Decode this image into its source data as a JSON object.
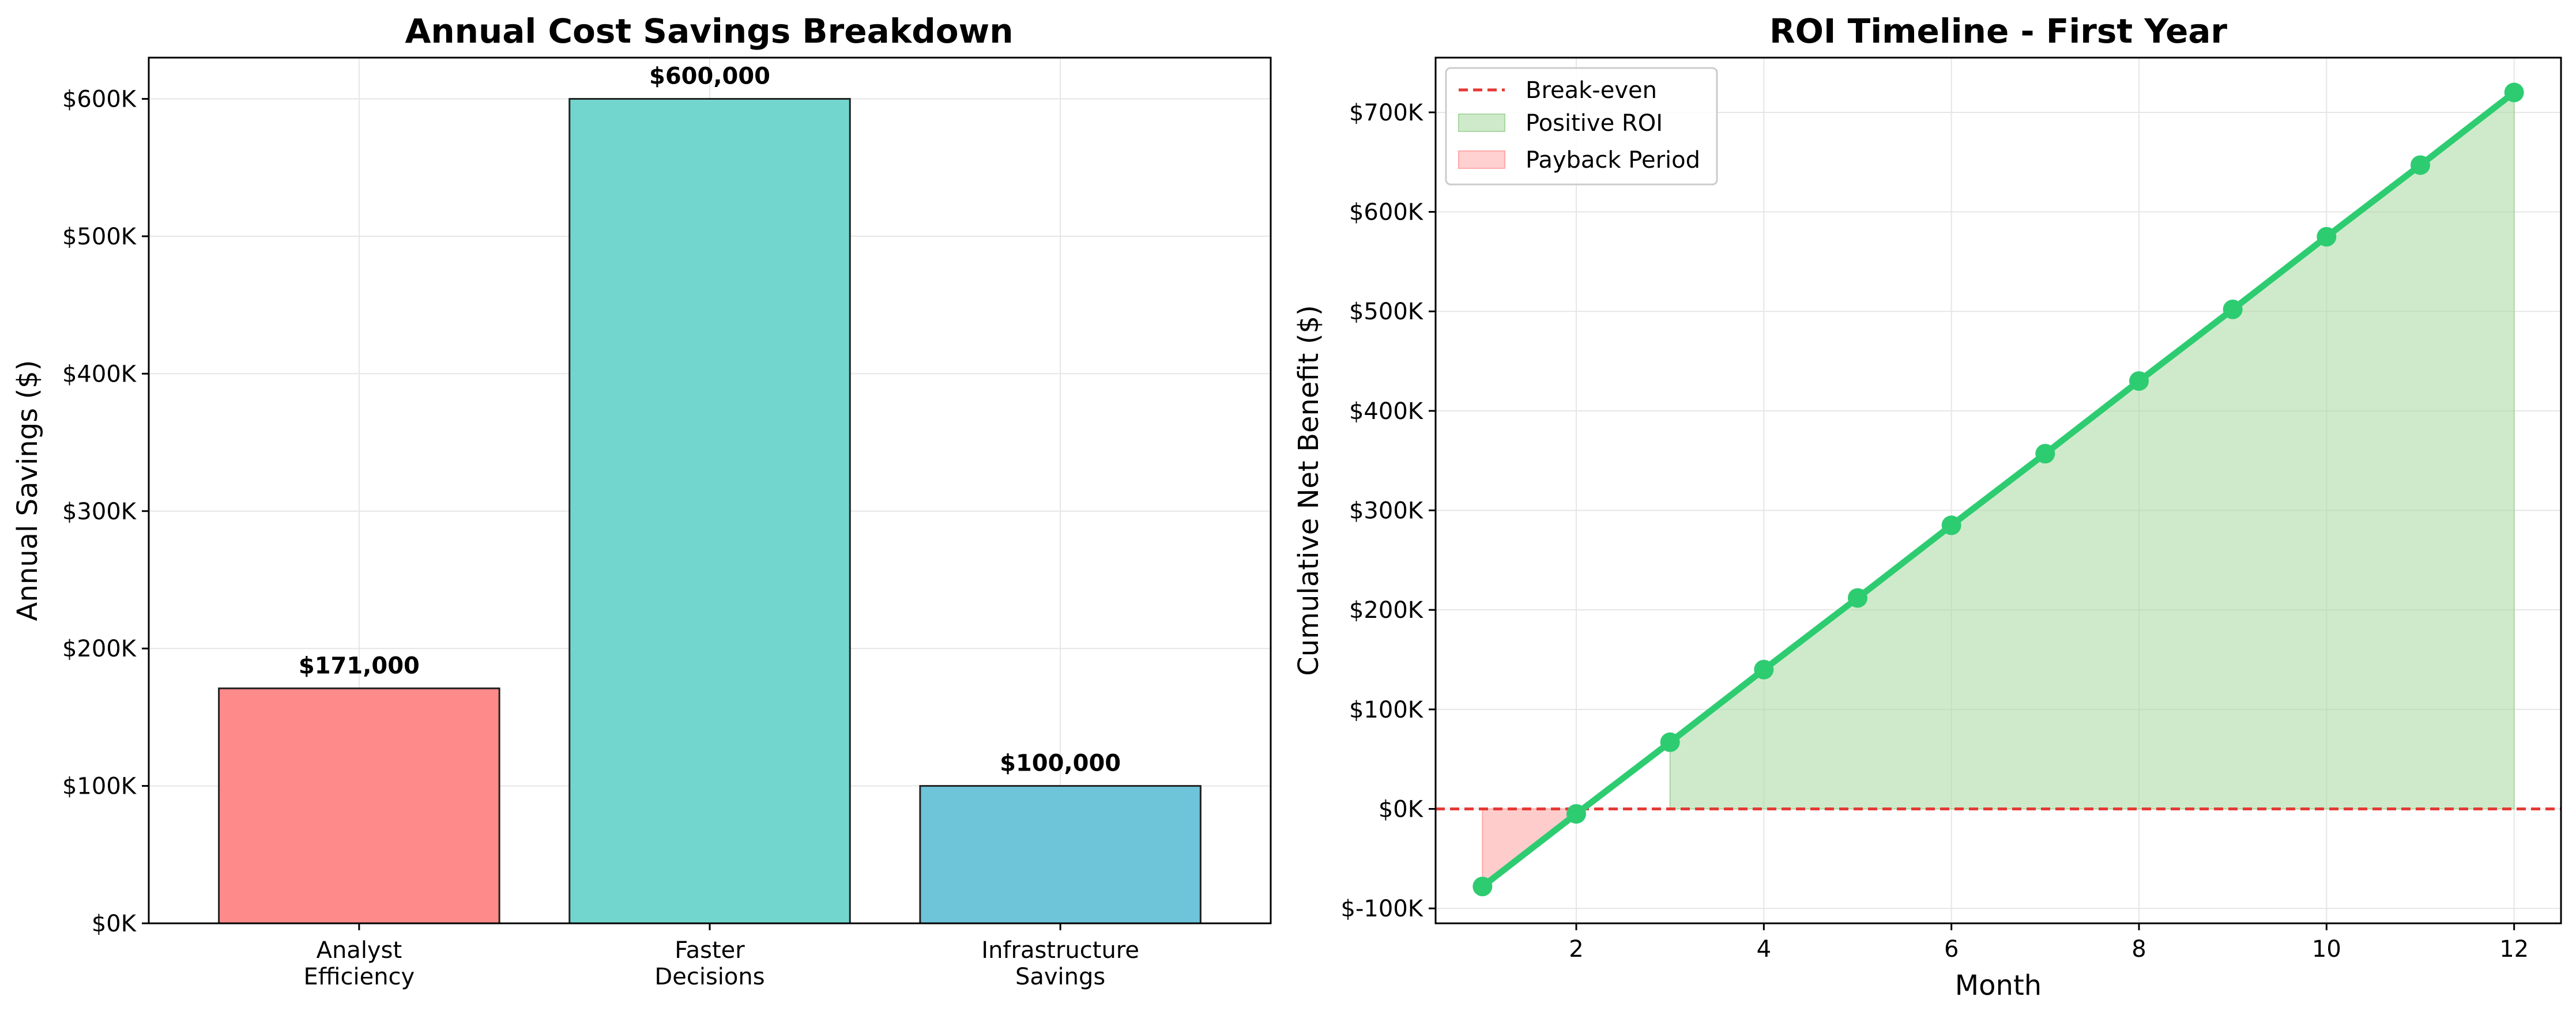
{
  "chart_data": [
    {
      "type": "bar",
      "title": "Annual Cost Savings Breakdown",
      "xlabel": "",
      "ylabel": "Annual Savings ($)",
      "categories": [
        [
          "Analyst",
          "Efficiency"
        ],
        [
          "Faster",
          "Decisions"
        ],
        [
          "Infrastructure",
          "Savings"
        ]
      ],
      "values": [
        171000,
        600000,
        100000
      ],
      "value_labels": [
        "$171,000",
        "$600,000",
        "$100,000"
      ],
      "colors": [
        "#ff8a8a",
        "#72d6ce",
        "#6ec4d9"
      ],
      "edge_color": "#222222",
      "ylim": [
        0,
        630000
      ],
      "yticks": [
        0,
        100000,
        200000,
        300000,
        400000,
        500000,
        600000
      ],
      "ytick_labels": [
        "$0K",
        "$100K",
        "$200K",
        "$300K",
        "$400K",
        "$500K",
        "$600K"
      ],
      "grid": true
    },
    {
      "type": "line",
      "title": "ROI Timeline - First Year",
      "xlabel": "Month",
      "ylabel": "Cumulative Net Benefit ($)",
      "x": [
        1,
        2,
        3,
        4,
        5,
        6,
        7,
        8,
        9,
        10,
        11,
        12
      ],
      "series": [
        {
          "values": [
            -78000,
            -5000,
            67000,
            140000,
            212000,
            285000,
            357000,
            430000,
            502000,
            575000,
            647000,
            720000
          ],
          "color": "#2ecc71"
        }
      ],
      "xlim": [
        0.5,
        12.5
      ],
      "ylim": [
        -115000,
        755000
      ],
      "xticks": [
        2,
        4,
        6,
        8,
        10,
        12
      ],
      "yticks": [
        -100000,
        0,
        100000,
        200000,
        300000,
        400000,
        500000,
        600000,
        700000
      ],
      "ytick_labels": [
        "$-100K",
        "$0K",
        "$100K",
        "$200K",
        "$300K",
        "$400K",
        "$500K",
        "$600K",
        "$700K"
      ],
      "breakeven": {
        "y": 0,
        "color": "#e53935"
      },
      "positive_roi_fill": {
        "x_from": 3,
        "x_to": 12,
        "color": "#a8d8a0"
      },
      "payback_fill": {
        "x_from": 1,
        "x_to": 2,
        "color": "#ffaaaa"
      },
      "legend": {
        "position": "upper-left",
        "entries": [
          {
            "label": "Break-even",
            "kind": "dashed-line",
            "color": "#e53935"
          },
          {
            "label": "Positive ROI",
            "kind": "patch",
            "color": "#a8d8a0"
          },
          {
            "label": "Payback Period",
            "kind": "patch",
            "color": "#ffaaaa"
          }
        ]
      },
      "grid": true
    }
  ]
}
